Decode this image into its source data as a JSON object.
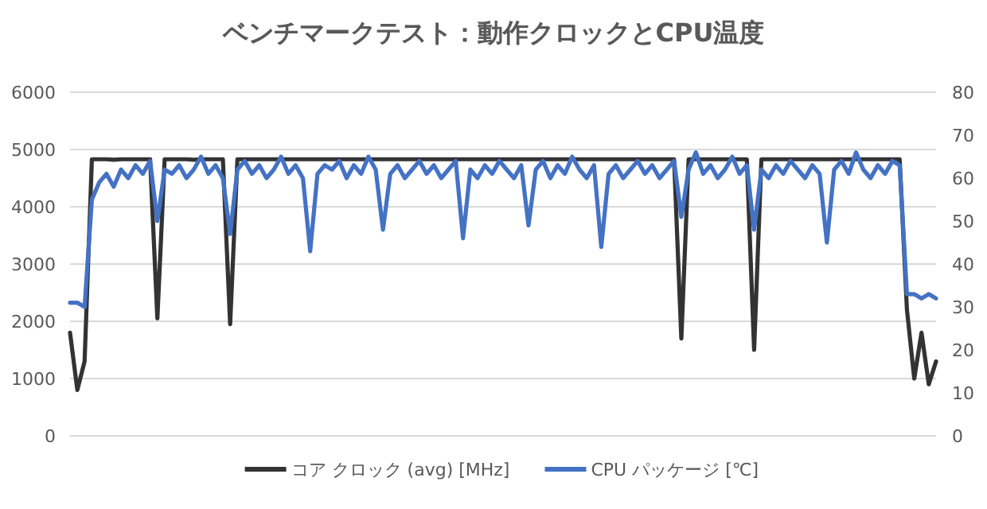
{
  "chart_data": {
    "type": "line",
    "title": "ベンチマークテスト：動作クロックとCPU温度",
    "categories": [
      null,
      null,
      null,
      null,
      null,
      null,
      null,
      null,
      null,
      null,
      null,
      null,
      null,
      null,
      null,
      null,
      null,
      null,
      null,
      null,
      null,
      null,
      null,
      null,
      null,
      null,
      null,
      null,
      null,
      null,
      null,
      null,
      null,
      null,
      null,
      null,
      null,
      null,
      null,
      null,
      null,
      null,
      null,
      null,
      null,
      null,
      null,
      null,
      null,
      null,
      null,
      null,
      null,
      null,
      null,
      null,
      null,
      null,
      null,
      null,
      null,
      null,
      null,
      null,
      null,
      null,
      null,
      null,
      null,
      null,
      null,
      null,
      null,
      null,
      null,
      null,
      null,
      null,
      null,
      null,
      null,
      null,
      null,
      null,
      null,
      null,
      null,
      null,
      null,
      null,
      null,
      null,
      null,
      null,
      null,
      null,
      null,
      null,
      null,
      null,
      null,
      null,
      null,
      null,
      null,
      null,
      null,
      null,
      null,
      null,
      null,
      null,
      null,
      null,
      null,
      null,
      null,
      null,
      null,
      null
    ],
    "series": [
      {
        "name": "コア クロック (avg) [MHz]",
        "color": "#333333",
        "values": [
          1800,
          800,
          1300,
          4830,
          4830,
          4830,
          4820,
          4830,
          4830,
          4830,
          4830,
          4830,
          2050,
          4830,
          4830,
          4830,
          4830,
          4820,
          4830,
          4830,
          4830,
          4830,
          1950,
          4830,
          4830,
          4830,
          4830,
          4830,
          4830,
          4830,
          4830,
          4830,
          4830,
          4830,
          4830,
          4830,
          4830,
          4830,
          4830,
          4830,
          4830,
          4830,
          4830,
          4830,
          4830,
          4830,
          4830,
          4830,
          4830,
          4830,
          4830,
          4830,
          4830,
          4830,
          4830,
          4830,
          4830,
          4830,
          4830,
          4830,
          4830,
          4830,
          4830,
          4830,
          4830,
          4830,
          4830,
          4830,
          4830,
          4830,
          4830,
          4830,
          4830,
          4830,
          4830,
          4830,
          4830,
          4830,
          4830,
          4830,
          4830,
          4830,
          4830,
          4830,
          1700,
          4830,
          4830,
          4830,
          4830,
          4830,
          4830,
          4830,
          4830,
          4830,
          1500,
          4830,
          4830,
          4830,
          4830,
          4830,
          4830,
          4830,
          4830,
          4830,
          4830,
          4830,
          4830,
          4830,
          4830,
          4830,
          4830,
          4830,
          4830,
          4830,
          4830,
          2200,
          1000,
          1800,
          900,
          1300
        ]
      },
      {
        "name": "CPU パッケージ [℃]",
        "color": "#4472c4",
        "axis": "y2",
        "values": [
          31,
          31,
          30,
          55,
          59,
          61,
          58,
          62,
          60,
          63,
          61,
          64,
          50,
          62,
          61,
          63,
          60,
          62,
          65,
          61,
          63,
          60,
          47,
          62,
          64,
          61,
          63,
          60,
          62,
          65,
          61,
          63,
          60,
          43,
          61,
          63,
          62,
          64,
          60,
          63,
          61,
          65,
          62,
          48,
          61,
          63,
          60,
          62,
          64,
          61,
          63,
          60,
          62,
          64,
          46,
          62,
          60,
          63,
          61,
          64,
          62,
          60,
          63,
          49,
          62,
          64,
          60,
          63,
          61,
          65,
          62,
          60,
          63,
          44,
          61,
          63,
          60,
          62,
          64,
          61,
          63,
          60,
          62,
          64,
          51,
          62,
          66,
          61,
          63,
          60,
          62,
          65,
          61,
          63,
          48,
          62,
          60,
          63,
          61,
          64,
          62,
          60,
          63,
          61,
          45,
          62,
          64,
          61,
          66,
          62,
          60,
          63,
          61,
          64,
          63,
          33,
          33,
          32,
          33,
          32
        ]
      }
    ],
    "ylim": [
      0,
      6000
    ],
    "yticks": [
      0,
      1000,
      2000,
      3000,
      4000,
      5000,
      6000
    ],
    "y2lim": [
      0,
      80
    ],
    "y2ticks": [
      0,
      10,
      20,
      30,
      40,
      50,
      60,
      70,
      80
    ],
    "grid": "y",
    "legend": "bottom"
  }
}
